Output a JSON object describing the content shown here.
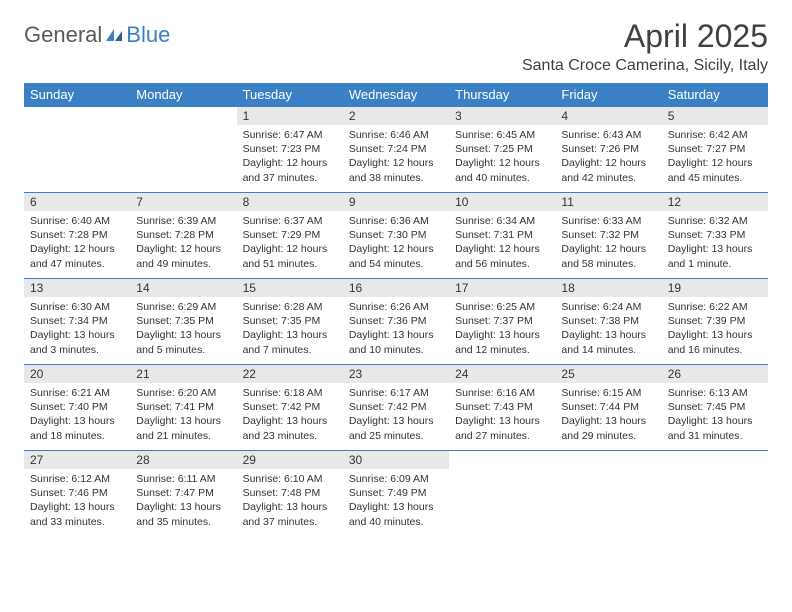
{
  "logo": {
    "word1": "General",
    "word2": "Blue",
    "shape_color": "#3b7fc4",
    "text_gray": "#5a5a5a"
  },
  "title": "April 2025",
  "location": "Santa Croce Camerina, Sicily, Italy",
  "header_bg": "#3b7fc4",
  "daynum_bg": "#e8e8e8",
  "border_color": "#3b7fc4",
  "day_headers": [
    "Sunday",
    "Monday",
    "Tuesday",
    "Wednesday",
    "Thursday",
    "Friday",
    "Saturday"
  ],
  "weeks": [
    [
      null,
      null,
      {
        "n": "1",
        "sunrise": "6:47 AM",
        "sunset": "7:23 PM",
        "daylight": "12 hours and 37 minutes."
      },
      {
        "n": "2",
        "sunrise": "6:46 AM",
        "sunset": "7:24 PM",
        "daylight": "12 hours and 38 minutes."
      },
      {
        "n": "3",
        "sunrise": "6:45 AM",
        "sunset": "7:25 PM",
        "daylight": "12 hours and 40 minutes."
      },
      {
        "n": "4",
        "sunrise": "6:43 AM",
        "sunset": "7:26 PM",
        "daylight": "12 hours and 42 minutes."
      },
      {
        "n": "5",
        "sunrise": "6:42 AM",
        "sunset": "7:27 PM",
        "daylight": "12 hours and 45 minutes."
      }
    ],
    [
      {
        "n": "6",
        "sunrise": "6:40 AM",
        "sunset": "7:28 PM",
        "daylight": "12 hours and 47 minutes."
      },
      {
        "n": "7",
        "sunrise": "6:39 AM",
        "sunset": "7:28 PM",
        "daylight": "12 hours and 49 minutes."
      },
      {
        "n": "8",
        "sunrise": "6:37 AM",
        "sunset": "7:29 PM",
        "daylight": "12 hours and 51 minutes."
      },
      {
        "n": "9",
        "sunrise": "6:36 AM",
        "sunset": "7:30 PM",
        "daylight": "12 hours and 54 minutes."
      },
      {
        "n": "10",
        "sunrise": "6:34 AM",
        "sunset": "7:31 PM",
        "daylight": "12 hours and 56 minutes."
      },
      {
        "n": "11",
        "sunrise": "6:33 AM",
        "sunset": "7:32 PM",
        "daylight": "12 hours and 58 minutes."
      },
      {
        "n": "12",
        "sunrise": "6:32 AM",
        "sunset": "7:33 PM",
        "daylight": "13 hours and 1 minute."
      }
    ],
    [
      {
        "n": "13",
        "sunrise": "6:30 AM",
        "sunset": "7:34 PM",
        "daylight": "13 hours and 3 minutes."
      },
      {
        "n": "14",
        "sunrise": "6:29 AM",
        "sunset": "7:35 PM",
        "daylight": "13 hours and 5 minutes."
      },
      {
        "n": "15",
        "sunrise": "6:28 AM",
        "sunset": "7:35 PM",
        "daylight": "13 hours and 7 minutes."
      },
      {
        "n": "16",
        "sunrise": "6:26 AM",
        "sunset": "7:36 PM",
        "daylight": "13 hours and 10 minutes."
      },
      {
        "n": "17",
        "sunrise": "6:25 AM",
        "sunset": "7:37 PM",
        "daylight": "13 hours and 12 minutes."
      },
      {
        "n": "18",
        "sunrise": "6:24 AM",
        "sunset": "7:38 PM",
        "daylight": "13 hours and 14 minutes."
      },
      {
        "n": "19",
        "sunrise": "6:22 AM",
        "sunset": "7:39 PM",
        "daylight": "13 hours and 16 minutes."
      }
    ],
    [
      {
        "n": "20",
        "sunrise": "6:21 AM",
        "sunset": "7:40 PM",
        "daylight": "13 hours and 18 minutes."
      },
      {
        "n": "21",
        "sunrise": "6:20 AM",
        "sunset": "7:41 PM",
        "daylight": "13 hours and 21 minutes."
      },
      {
        "n": "22",
        "sunrise": "6:18 AM",
        "sunset": "7:42 PM",
        "daylight": "13 hours and 23 minutes."
      },
      {
        "n": "23",
        "sunrise": "6:17 AM",
        "sunset": "7:42 PM",
        "daylight": "13 hours and 25 minutes."
      },
      {
        "n": "24",
        "sunrise": "6:16 AM",
        "sunset": "7:43 PM",
        "daylight": "13 hours and 27 minutes."
      },
      {
        "n": "25",
        "sunrise": "6:15 AM",
        "sunset": "7:44 PM",
        "daylight": "13 hours and 29 minutes."
      },
      {
        "n": "26",
        "sunrise": "6:13 AM",
        "sunset": "7:45 PM",
        "daylight": "13 hours and 31 minutes."
      }
    ],
    [
      {
        "n": "27",
        "sunrise": "6:12 AM",
        "sunset": "7:46 PM",
        "daylight": "13 hours and 33 minutes."
      },
      {
        "n": "28",
        "sunrise": "6:11 AM",
        "sunset": "7:47 PM",
        "daylight": "13 hours and 35 minutes."
      },
      {
        "n": "29",
        "sunrise": "6:10 AM",
        "sunset": "7:48 PM",
        "daylight": "13 hours and 37 minutes."
      },
      {
        "n": "30",
        "sunrise": "6:09 AM",
        "sunset": "7:49 PM",
        "daylight": "13 hours and 40 minutes."
      },
      null,
      null,
      null
    ]
  ],
  "labels": {
    "sunrise": "Sunrise:",
    "sunset": "Sunset:",
    "daylight": "Daylight:"
  }
}
